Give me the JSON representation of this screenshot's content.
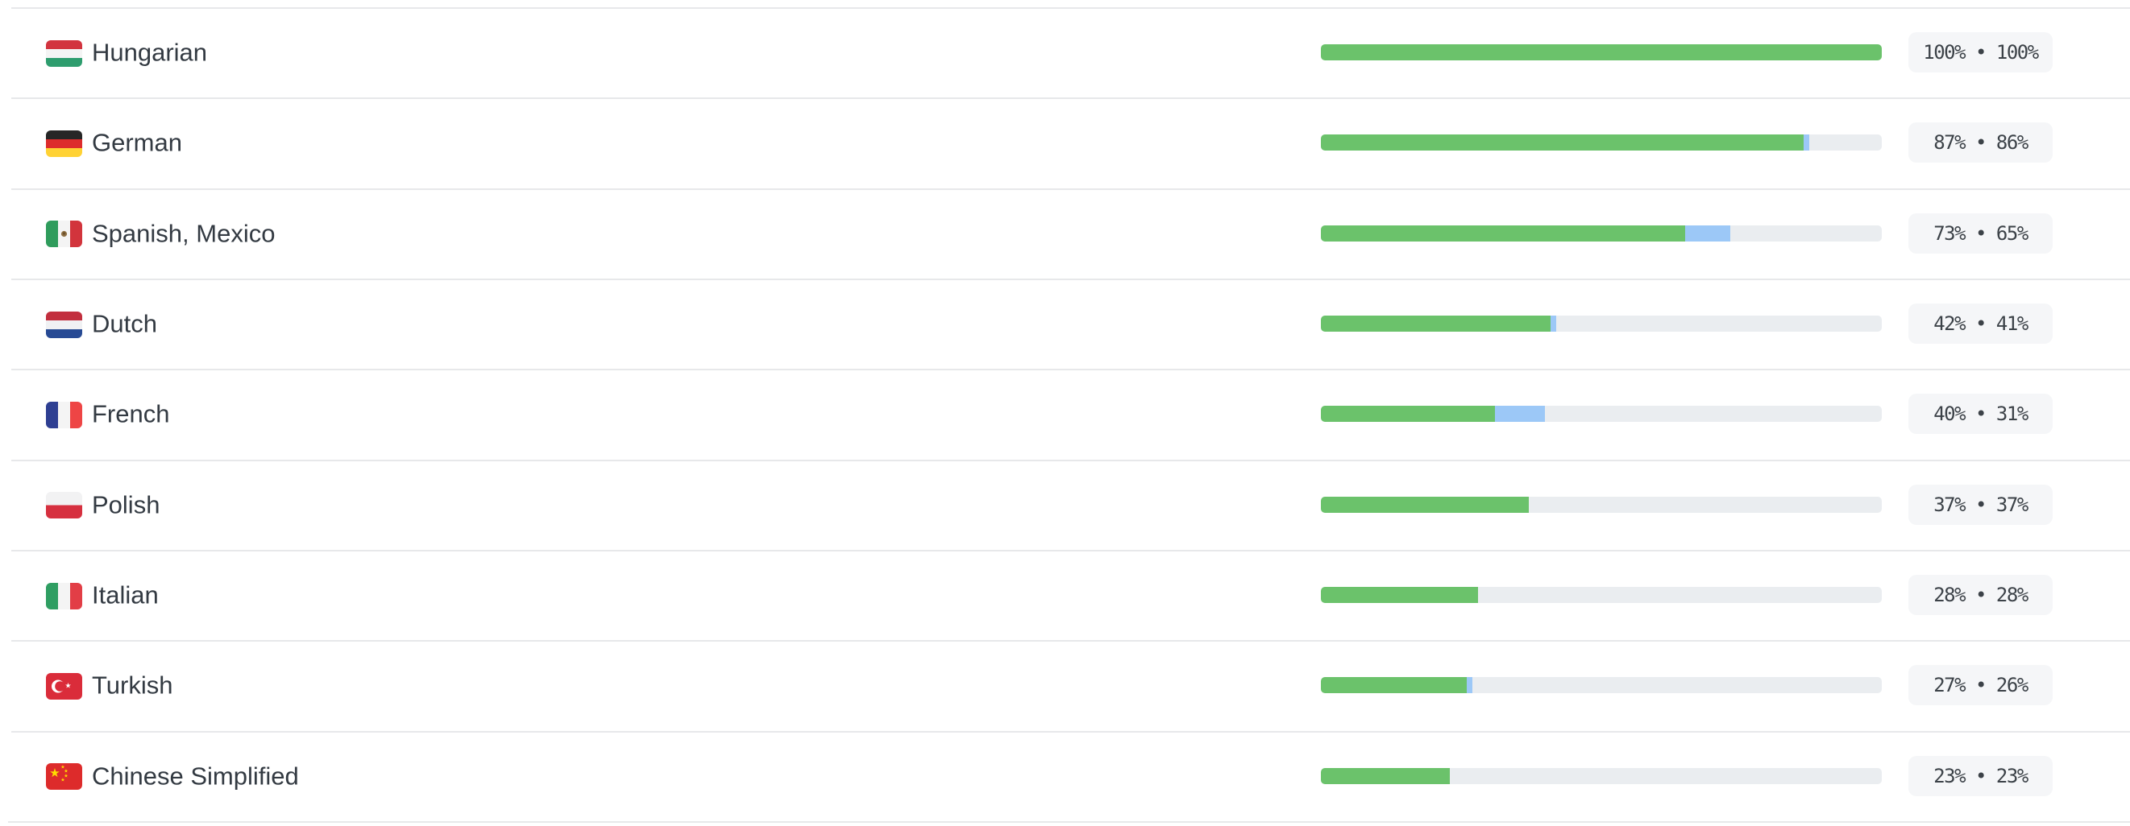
{
  "panel": {
    "description": "translation progress per language"
  },
  "colors": {
    "background": "#ffffff",
    "separator": "#e7e8ea",
    "label_text": "#333a42",
    "bar_green": "#6bc26b",
    "bar_blue": "#9cc8f7",
    "bar_track": "#eaedf0",
    "badge_background": "#f5f6f8",
    "badge_text": "#3c4248"
  },
  "languages": [
    {
      "name": "Hungarian",
      "flag": "hungary",
      "flag_code": "hu",
      "percent_first": 100,
      "percent_second": 100,
      "badge": "100% • 100%"
    },
    {
      "name": "German",
      "flag": "germany",
      "flag_code": "de",
      "percent_first": 87,
      "percent_second": 86,
      "badge": "87% • 86%"
    },
    {
      "name": "Spanish, Mexico",
      "flag": "mexico",
      "flag_code": "mx",
      "percent_first": 73,
      "percent_second": 65,
      "badge": "73% • 65%"
    },
    {
      "name": "Dutch",
      "flag": "netherlands",
      "flag_code": "nl",
      "percent_first": 42,
      "percent_second": 41,
      "badge": "42% • 41%"
    },
    {
      "name": "French",
      "flag": "france",
      "flag_code": "fr",
      "percent_first": 40,
      "percent_second": 31,
      "badge": "40% • 31%"
    },
    {
      "name": "Polish",
      "flag": "poland",
      "flag_code": "pl",
      "percent_first": 37,
      "percent_second": 37,
      "badge": "37% • 37%"
    },
    {
      "name": "Italian",
      "flag": "italy",
      "flag_code": "it",
      "percent_first": 28,
      "percent_second": 28,
      "badge": "28% • 28%"
    },
    {
      "name": "Turkish",
      "flag": "turkey",
      "flag_code": "tr",
      "percent_first": 27,
      "percent_second": 26,
      "badge": "27% • 26%"
    },
    {
      "name": "Chinese Simplified",
      "flag": "china",
      "flag_code": "cn",
      "percent_first": 23,
      "percent_second": 23,
      "badge": "23% • 23%"
    }
  ]
}
